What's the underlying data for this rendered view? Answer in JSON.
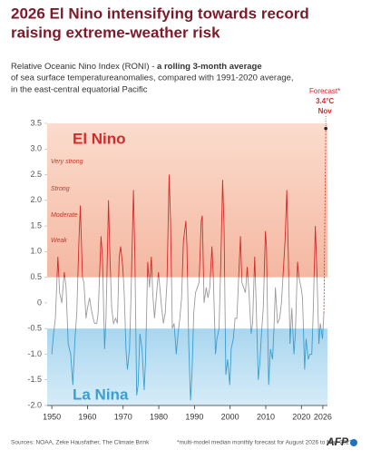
{
  "chart_data": {
    "type": "line",
    "title": [
      "2026 El Nino intensifying towards record",
      "raising extreme-weather risk"
    ],
    "subtitle": {
      "lead": "Relative Oceanic Nino Index (RONI) - ",
      "bold": "a rolling 3-month average",
      "lines": [
        "of sea surface temperatureanomalies, compared with 1991-2020 average,",
        "in the east-central equatorial Pacific"
      ]
    },
    "band_labels": {
      "el_nino": "El Nino",
      "la_nina": "La Nina"
    },
    "strength_labels": [
      "Very strong",
      "Strong",
      "Moderate",
      "Weak"
    ],
    "el_nino_threshold": 0.5,
    "la_nina_threshold": -0.5,
    "colors": {
      "el_nino": "#d42a2a",
      "neutral": "#9a9a9a",
      "la_nina": "#3a9ed0"
    },
    "x": [
      1950.0,
      1950.5,
      1951.0,
      1951.7,
      1952.2,
      1952.8,
      1953.5,
      1954.0,
      1954.6,
      1955.3,
      1955.9,
      1956.5,
      1957.0,
      1957.6,
      1958.0,
      1958.6,
      1959.0,
      1959.6,
      1960.0,
      1960.6,
      1961.0,
      1961.6,
      1962.0,
      1962.6,
      1963.0,
      1963.8,
      1964.2,
      1964.8,
      1965.2,
      1965.9,
      1966.3,
      1966.8,
      1967.3,
      1967.9,
      1968.4,
      1968.9,
      1969.3,
      1969.9,
      1970.3,
      1970.8,
      1971.2,
      1971.8,
      1972.2,
      1972.9,
      1973.3,
      1973.8,
      1974.2,
      1974.7,
      1975.3,
      1975.9,
      1976.3,
      1976.9,
      1977.4,
      1977.9,
      1978.3,
      1978.8,
      1979.3,
      1979.9,
      1980.3,
      1980.8,
      1981.3,
      1981.8,
      1982.3,
      1982.9,
      1983.3,
      1983.8,
      1984.3,
      1984.9,
      1985.4,
      1985.9,
      1986.4,
      1986.9,
      1987.6,
      1987.9,
      1988.4,
      1988.9,
      1989.3,
      1989.8,
      1990.3,
      1990.8,
      1991.3,
      1991.9,
      1992.2,
      1992.7,
      1993.3,
      1993.8,
      1994.3,
      1994.9,
      1995.3,
      1995.9,
      1996.3,
      1996.9,
      1997.4,
      1997.9,
      1998.3,
      1998.8,
      1999.3,
      1999.9,
      2000.3,
      2000.9,
      2001.4,
      2001.9,
      2002.4,
      2002.9,
      2003.3,
      2003.8,
      2004.3,
      2004.8,
      2005.3,
      2005.9,
      2006.3,
      2006.9,
      2007.3,
      2007.9,
      2008.3,
      2008.8,
      2009.3,
      2009.9,
      2010.2,
      2010.8,
      2011.3,
      2011.9,
      2012.3,
      2012.7,
      2013.3,
      2013.9,
      2014.4,
      2014.9,
      2015.4,
      2015.9,
      2016.3,
      2016.8,
      2017.3,
      2017.9,
      2018.3,
      2018.9,
      2019.3,
      2019.9,
      2020.3,
      2020.9,
      2021.3,
      2021.9,
      2022.4,
      2022.9,
      2023.3,
      2023.9,
      2024.3,
      2024.9,
      2025.3,
      2025.9,
      2026.3
    ],
    "values": [
      -1.0,
      -0.6,
      -0.3,
      0.9,
      0.2,
      0.0,
      0.6,
      0.3,
      -0.8,
      -1.0,
      -1.6,
      -0.7,
      -0.2,
      1.2,
      1.9,
      0.5,
      0.4,
      -0.3,
      -0.1,
      0.1,
      -0.1,
      -0.3,
      -0.4,
      -0.4,
      -0.2,
      1.3,
      0.9,
      -0.9,
      -0.3,
      2.0,
      0.9,
      -0.1,
      -0.4,
      -0.3,
      -0.4,
      0.9,
      1.1,
      0.7,
      0.2,
      -0.9,
      -1.3,
      -0.9,
      0.1,
      2.2,
      0.9,
      -1.8,
      -1.6,
      -0.6,
      -0.9,
      -1.7,
      -1.1,
      0.8,
      0.3,
      0.9,
      0.2,
      -0.3,
      0.1,
      0.6,
      0.3,
      -0.1,
      -0.4,
      -0.2,
      0.4,
      2.5,
      1.6,
      -0.5,
      -0.4,
      -1.0,
      -0.6,
      -0.3,
      0.1,
      1.2,
      1.6,
      1.1,
      -0.8,
      -1.9,
      -1.4,
      -0.2,
      0.2,
      0.3,
      0.4,
      1.6,
      1.7,
      0.0,
      0.3,
      0.1,
      0.3,
      1.1,
      0.5,
      -1.0,
      -0.7,
      -0.5,
      0.8,
      2.4,
      1.5,
      -1.4,
      -1.1,
      -1.6,
      -0.9,
      -0.7,
      -0.3,
      -0.3,
      0.5,
      1.3,
      0.4,
      0.3,
      0.2,
      0.7,
      0.2,
      -0.6,
      -0.4,
      0.9,
      0.0,
      -1.5,
      -1.2,
      -0.6,
      -0.1,
      1.4,
      1.1,
      -1.6,
      -0.9,
      -1.1,
      -0.5,
      0.3,
      -0.4,
      -0.3,
      0.0,
      0.6,
      1.2,
      2.2,
      1.0,
      -0.8,
      -0.1,
      -1.0,
      -0.6,
      0.8,
      0.5,
      0.3,
      0.1,
      -1.3,
      -0.7,
      -1.1,
      -1.0,
      -1.0,
      -0.2,
      1.5,
      0.7,
      -0.8,
      -0.4,
      -0.7,
      -0.2
    ],
    "forecast": {
      "x": 2026.83,
      "value": 3.4,
      "value_label": "3.4°C",
      "label": "Forecast*",
      "month": "Nov"
    },
    "xlim": [
      1948.7,
      2027.3
    ],
    "ylim": [
      -2,
      3.5
    ],
    "xticks": [
      1950,
      1960,
      1970,
      1980,
      1990,
      2000,
      2010,
      2020,
      2026
    ],
    "yticks": [
      3.5,
      {
        "value": 3,
        "label": "3.0"
      },
      2.5,
      {
        "value": 2,
        "label": "2.0"
      },
      1.5,
      {
        "value": 1,
        "label": "1.0"
      },
      0.5,
      0,
      -0.5,
      {
        "value": -1,
        "label": "-1.0"
      },
      -1.5,
      {
        "value": -2,
        "label": "-2.0"
      }
    ],
    "source": "Sources: NOAA, Zeke Hausfather, The Climate Brink",
    "footnote": "*multi-model median monthly forecast for August 2026 to May 2027",
    "logo": "AFP"
  }
}
